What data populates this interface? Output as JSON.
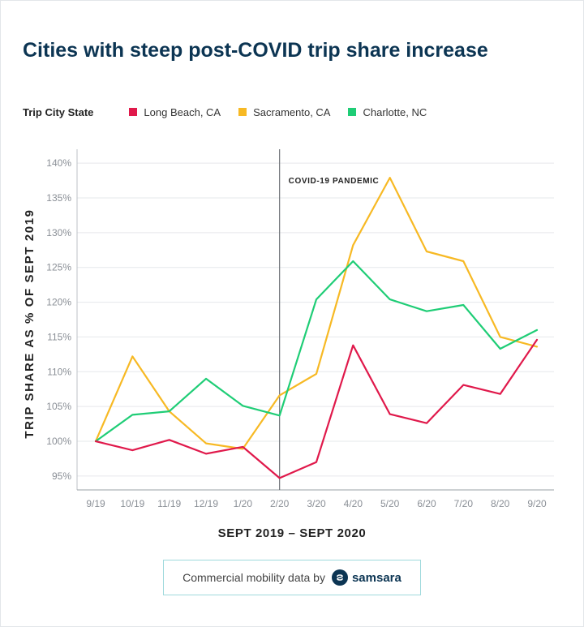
{
  "page": {
    "title": "Cities with steep post-COVID trip share increase"
  },
  "legend": {
    "title": "Trip City State"
  },
  "credit": {
    "text": "Commercial mobility data by",
    "brand": "samsara"
  },
  "chart_data": {
    "type": "line",
    "title": "Cities with steep post-COVID trip share increase",
    "xlabel": "SEPT 2019 – SEPT 2020",
    "ylabel": "TRIP SHARE AS % OF SEPT 2019",
    "categories": [
      "9/19",
      "10/19",
      "11/19",
      "12/19",
      "1/20",
      "2/20",
      "3/20",
      "4/20",
      "5/20",
      "6/20",
      "7/20",
      "8/20",
      "9/20"
    ],
    "ylim": [
      93,
      142
    ],
    "yticks": [
      95,
      100,
      105,
      110,
      115,
      120,
      125,
      130,
      135,
      140
    ],
    "ytick_labels": [
      "95%",
      "100%",
      "105%",
      "110%",
      "115%",
      "120%",
      "125%",
      "130%",
      "135%",
      "140%"
    ],
    "grid": true,
    "legend_position": "top",
    "annotation": {
      "label": "COVID-19 PANDEMIC",
      "at_category": "2/20"
    },
    "series": [
      {
        "name": "Long Beach, CA",
        "color": "#e0194b",
        "values": [
          100,
          98.7,
          100.2,
          98.2,
          99.2,
          94.7,
          97,
          113.8,
          103.9,
          102.6,
          108.1,
          106.8,
          114.6
        ]
      },
      {
        "name": "Sacramento, CA",
        "color": "#f7b924",
        "values": [
          100,
          112.2,
          104.3,
          99.7,
          98.9,
          106.6,
          109.7,
          128.2,
          137.9,
          127.3,
          125.9,
          115,
          113.6
        ]
      },
      {
        "name": "Charlotte, NC",
        "color": "#1fcd76",
        "values": [
          100,
          103.8,
          104.3,
          109,
          105.1,
          103.7,
          120.4,
          125.9,
          120.4,
          118.7,
          119.6,
          113.3,
          116
        ]
      }
    ]
  }
}
